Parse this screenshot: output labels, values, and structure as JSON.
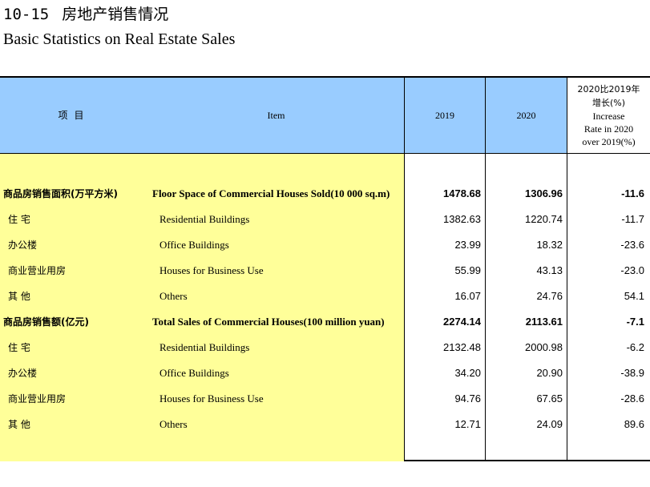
{
  "title": {
    "number": "10-15",
    "cn": "房地产销售情况",
    "en": "Basic Statistics on Real Estate Sales"
  },
  "header": {
    "cn_item": "项目",
    "en_item": "Item",
    "col_2019": "2019",
    "col_2020": "2020",
    "rate_cn_1": "2020比2019年",
    "rate_cn_2": "增长(%)",
    "rate_en_1": "Increase",
    "rate_en_2": "Rate in 2020",
    "rate_en_3": "over 2019(%)"
  },
  "rows": [
    {
      "cn": "商品房销售面积(万平方米)",
      "en": "Floor Space of Commercial Houses Sold(10 000 sq.m)",
      "v2019": "1478.68",
      "v2020": "1306.96",
      "rate": "-11.6",
      "level": "main"
    },
    {
      "cn": "住 宅",
      "en": "Residential Buildings",
      "v2019": "1382.63",
      "v2020": "1220.74",
      "rate": "-11.7",
      "level": "sub"
    },
    {
      "cn": "办公楼",
      "en": "Office Buildings",
      "v2019": "23.99",
      "v2020": "18.32",
      "rate": "-23.6",
      "level": "sub"
    },
    {
      "cn": "商业营业用房",
      "en": "Houses for Business Use",
      "v2019": "55.99",
      "v2020": "43.13",
      "rate": "-23.0",
      "level": "sub"
    },
    {
      "cn": "其 他",
      "en": "Others",
      "v2019": "16.07",
      "v2020": "24.76",
      "rate": "54.1",
      "level": "sub"
    },
    {
      "cn": "商品房销售额(亿元)",
      "en": "Total Sales of Commercial Houses(100 million yuan)",
      "v2019": "2274.14",
      "v2020": "2113.61",
      "rate": "-7.1",
      "level": "main"
    },
    {
      "cn": "住 宅",
      "en": "Residential Buildings",
      "v2019": "2132.48",
      "v2020": "2000.98",
      "rate": "-6.2",
      "level": "sub"
    },
    {
      "cn": "办公楼",
      "en": "Office Buildings",
      "v2019": "34.20",
      "v2020": "20.90",
      "rate": "-38.9",
      "level": "sub"
    },
    {
      "cn": "商业营业用房",
      "en": "Houses for Business Use",
      "v2019": "94.76",
      "v2020": "67.65",
      "rate": "-28.6",
      "level": "sub"
    },
    {
      "cn": "其 他",
      "en": "Others",
      "v2019": "12.71",
      "v2020": "24.09",
      "rate": "89.6",
      "level": "sub"
    }
  ],
  "colors": {
    "header_blue": "#99ccff",
    "item_yellow": "#ffff99"
  }
}
